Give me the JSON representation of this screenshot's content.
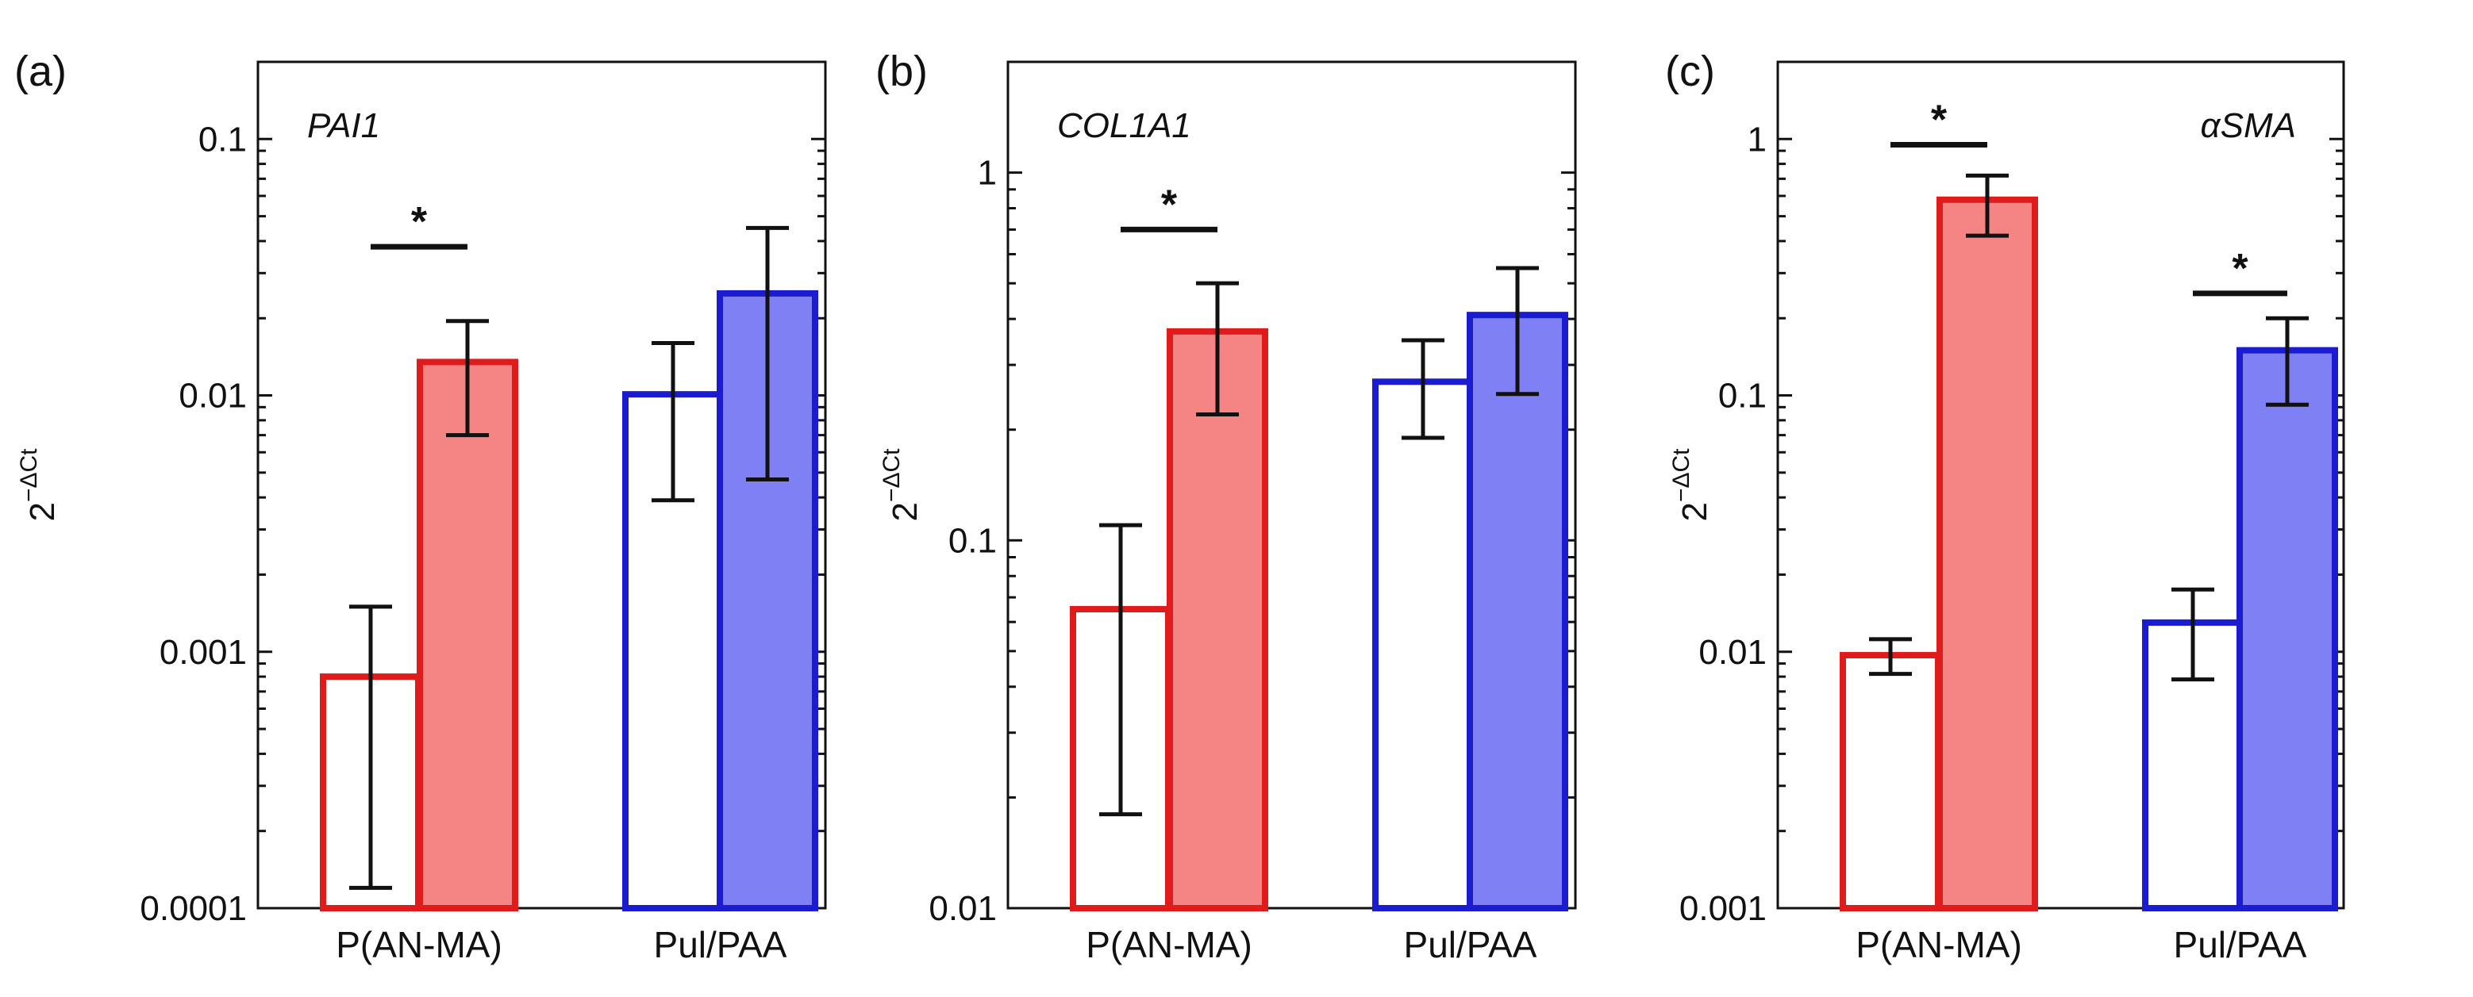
{
  "chart_data": [
    {
      "panel": "(a)",
      "type": "bar",
      "gene": "PAI1",
      "yscale": "log",
      "ylim": [
        0.0001,
        0.2
      ],
      "yticks": [
        0.0001,
        0.001,
        0.01,
        0.1
      ],
      "ytick_labels": [
        "0.0001",
        "0.001",
        "0.01",
        "0.1"
      ],
      "ylabel": "2",
      "ylabel_sup": "−ΔCt",
      "categories": [
        "P(AN-MA)",
        "Pul/PAA"
      ],
      "series": [
        {
          "group": 0,
          "style": "outline",
          "color": "#e01b1b",
          "fill": "#ffffff",
          "value": 0.0008,
          "err_low": 0.00012,
          "err_high": 0.0015
        },
        {
          "group": 0,
          "style": "filled",
          "color": "#e01b1b",
          "fill": "#f58585",
          "value": 0.0135,
          "err_low": 0.007,
          "err_high": 0.0195
        },
        {
          "group": 1,
          "style": "outline",
          "color": "#1b1bcf",
          "fill": "#ffffff",
          "value": 0.0101,
          "err_low": 0.0039,
          "err_high": 0.016
        },
        {
          "group": 1,
          "style": "filled",
          "color": "#1b1bcf",
          "fill": "#8080f5",
          "value": 0.025,
          "err_low": 0.0047,
          "err_high": 0.045
        }
      ],
      "significance": [
        {
          "group": 0,
          "y": 0.038,
          "label": "*"
        }
      ]
    },
    {
      "panel": "(b)",
      "type": "bar",
      "gene": "COL1A1",
      "yscale": "log",
      "ylim": [
        0.01,
        2
      ],
      "yticks": [
        0.01,
        0.1,
        1
      ],
      "ytick_labels": [
        "0.01",
        "0.1",
        "1"
      ],
      "ylabel": "2",
      "ylabel_sup": "−ΔCt",
      "categories": [
        "P(AN-MA)",
        "Pul/PAA"
      ],
      "series": [
        {
          "group": 0,
          "style": "outline",
          "color": "#e01b1b",
          "fill": "#ffffff",
          "value": 0.065,
          "err_low": 0.018,
          "err_high": 0.11
        },
        {
          "group": 0,
          "style": "filled",
          "color": "#e01b1b",
          "fill": "#f58585",
          "value": 0.37,
          "err_low": 0.22,
          "err_high": 0.5
        },
        {
          "group": 1,
          "style": "outline",
          "color": "#1b1bcf",
          "fill": "#ffffff",
          "value": 0.27,
          "err_low": 0.19,
          "err_high": 0.35
        },
        {
          "group": 1,
          "style": "filled",
          "color": "#1b1bcf",
          "fill": "#8080f5",
          "value": 0.41,
          "err_low": 0.25,
          "err_high": 0.55
        }
      ],
      "significance": [
        {
          "group": 0,
          "y": 0.7,
          "label": "*"
        }
      ]
    },
    {
      "panel": "(c)",
      "type": "bar",
      "gene": "αSMA",
      "yscale": "log",
      "ylim": [
        0.001,
        2
      ],
      "yticks": [
        0.001,
        0.01,
        0.1,
        1
      ],
      "ytick_labels": [
        "0.001",
        "0.01",
        "0.1",
        "1"
      ],
      "ylabel": "2",
      "ylabel_sup": "−ΔCt",
      "categories": [
        "P(AN-MA)",
        "Pul/PAA"
      ],
      "series": [
        {
          "group": 0,
          "style": "outline",
          "color": "#e01b1b",
          "fill": "#ffffff",
          "value": 0.0097,
          "err_low": 0.0082,
          "err_high": 0.0112
        },
        {
          "group": 0,
          "style": "filled",
          "color": "#e01b1b",
          "fill": "#f58585",
          "value": 0.58,
          "err_low": 0.42,
          "err_high": 0.72
        },
        {
          "group": 1,
          "style": "outline",
          "color": "#1b1bcf",
          "fill": "#ffffff",
          "value": 0.013,
          "err_low": 0.0078,
          "err_high": 0.0175
        },
        {
          "group": 1,
          "style": "filled",
          "color": "#1b1bcf",
          "fill": "#8080f5",
          "value": 0.15,
          "err_low": 0.092,
          "err_high": 0.2
        }
      ],
      "significance": [
        {
          "group": 0,
          "y": 0.95,
          "label": "*"
        },
        {
          "group": 1,
          "y": 0.25,
          "label": "*"
        }
      ]
    }
  ]
}
